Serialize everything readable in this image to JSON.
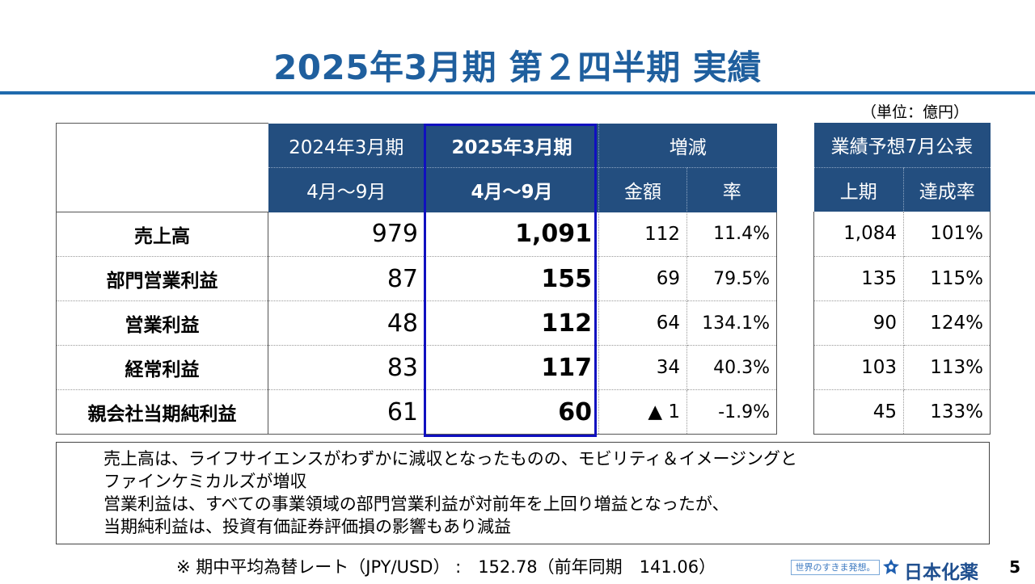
{
  "title": "2025年3月期 第２四半期 実績",
  "unit": "（単位：億円）",
  "table": {
    "col_prev_year": "2024年3月期",
    "col_prev_period": "4月～9月",
    "col_curr_year": "2025年3月期",
    "col_curr_period": "4月～9月",
    "col_change": "増減",
    "col_amount": "金額",
    "col_rate": "率",
    "rows": [
      {
        "label": "売上高",
        "prev": "979",
        "curr": "1,091",
        "amount": "112",
        "rate": "11.4%"
      },
      {
        "label": "部門営業利益",
        "prev": "87",
        "curr": "155",
        "amount": "69",
        "rate": "79.5%"
      },
      {
        "label": "営業利益",
        "prev": "48",
        "curr": "112",
        "amount": "64",
        "rate": "134.1%"
      },
      {
        "label": "経常利益",
        "prev": "83",
        "curr": "117",
        "amount": "34",
        "rate": "40.3%"
      },
      {
        "label": "親会社当期純利益",
        "prev": "61",
        "curr": "60",
        "amount": "▲ 1",
        "rate": "-1.9%"
      }
    ]
  },
  "forecast": {
    "header": "業績予想7月公表",
    "col_first_half": "上期",
    "col_achievement": "達成率",
    "rows": [
      {
        "first_half": "1,084",
        "achievement": "101%"
      },
      {
        "first_half": "135",
        "achievement": "115%"
      },
      {
        "first_half": "90",
        "achievement": "124%"
      },
      {
        "first_half": "103",
        "achievement": "113%"
      },
      {
        "first_half": "45",
        "achievement": "133%"
      }
    ]
  },
  "notes": [
    "売上高は、ライフサイエンスがわずかに減収となったものの、モビリティ＆イメージングと",
    "ファインケミカルズが増収",
    "営業利益は、すべての事業領域の部門営業利益が対前年を上回り増益となったが、",
    "当期純利益は、投資有価証券評価損の影響もあり減益"
  ],
  "fx_note": "※ 期中平均為替レート（JPY/USD） :　152.78（前年同期　141.06）",
  "footer": {
    "slogan": "世界のすきま発想。",
    "company": "日本化薬",
    "page_number": "5"
  },
  "colors": {
    "title": "#1f5f9e",
    "header_bg": "#234e7f",
    "highlight_border": "#1010c0"
  }
}
